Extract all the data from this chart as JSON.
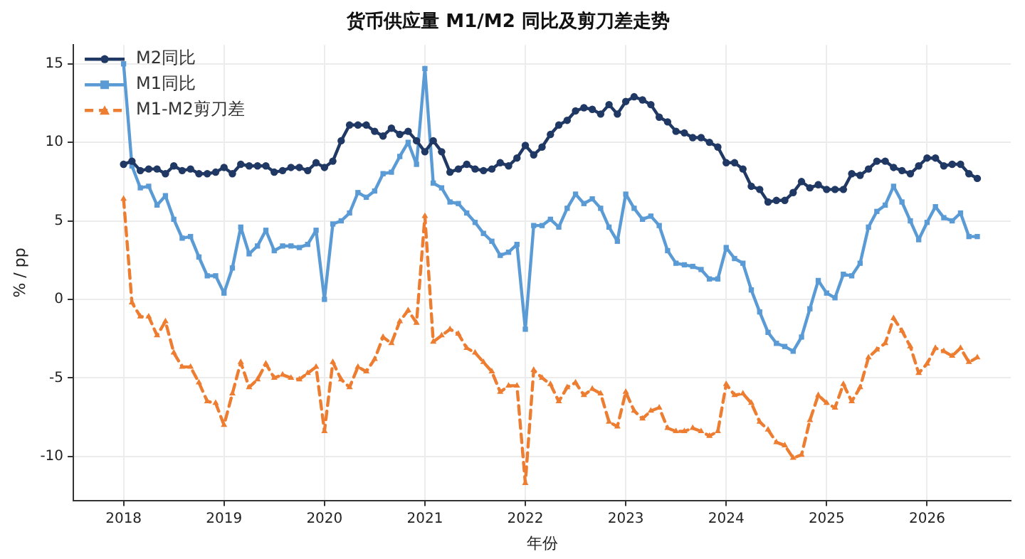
{
  "chart_data": {
    "type": "line",
    "title": "货币供应量 M1/M2 同比及剪刀差走势",
    "xlabel": "年份",
    "ylabel": "% / pp",
    "xlim": [
      "2017-07",
      "2026-11"
    ],
    "xticks": [
      "2018",
      "2019",
      "2020",
      "2021",
      "2022",
      "2023",
      "2024",
      "2025",
      "2026"
    ],
    "ylim": [
      -12.8,
      16.2
    ],
    "yticks": [
      -10,
      -5,
      0,
      5,
      10,
      15
    ],
    "grid": true,
    "legend": "top left",
    "x": [
      "2018-01",
      "2018-02",
      "2018-03",
      "2018-04",
      "2018-05",
      "2018-06",
      "2018-07",
      "2018-08",
      "2018-09",
      "2018-10",
      "2018-11",
      "2018-12",
      "2019-01",
      "2019-02",
      "2019-03",
      "2019-04",
      "2019-05",
      "2019-06",
      "2019-07",
      "2019-08",
      "2019-09",
      "2019-10",
      "2019-11",
      "2019-12",
      "2020-01",
      "2020-02",
      "2020-03",
      "2020-04",
      "2020-05",
      "2020-06",
      "2020-07",
      "2020-08",
      "2020-09",
      "2020-10",
      "2020-11",
      "2020-12",
      "2021-01",
      "2021-02",
      "2021-03",
      "2021-04",
      "2021-05",
      "2021-06",
      "2021-07",
      "2021-08",
      "2021-09",
      "2021-10",
      "2021-11",
      "2021-12",
      "2022-01",
      "2022-02",
      "2022-03",
      "2022-04",
      "2022-05",
      "2022-06",
      "2022-07",
      "2022-08",
      "2022-09",
      "2022-10",
      "2022-11",
      "2022-12",
      "2023-01",
      "2023-02",
      "2023-03",
      "2023-04",
      "2023-05",
      "2023-06",
      "2023-07",
      "2023-08",
      "2023-09",
      "2023-10",
      "2023-11",
      "2023-12",
      "2024-01",
      "2024-02",
      "2024-03",
      "2024-04",
      "2024-05",
      "2024-06",
      "2024-07",
      "2024-08",
      "2024-09",
      "2024-10",
      "2024-11",
      "2024-12",
      "2025-01",
      "2025-02",
      "2025-03",
      "2025-04",
      "2025-05",
      "2025-06",
      "2025-07",
      "2025-08",
      "2025-09",
      "2025-10",
      "2025-11",
      "2025-12",
      "2026-01",
      "2026-02",
      "2026-03",
      "2026-04",
      "2026-05",
      "2026-06",
      "2026-07"
    ],
    "series": [
      {
        "name": "M2同比",
        "color": "#203864",
        "marker": "circle",
        "line_style": "solid",
        "values": [
          8.6,
          8.8,
          8.2,
          8.3,
          8.3,
          8.0,
          8.5,
          8.2,
          8.3,
          8.0,
          8.0,
          8.1,
          8.4,
          8.0,
          8.6,
          8.5,
          8.5,
          8.5,
          8.1,
          8.2,
          8.4,
          8.4,
          8.2,
          8.7,
          8.4,
          8.8,
          10.1,
          11.1,
          11.1,
          11.1,
          10.7,
          10.4,
          10.9,
          10.5,
          10.7,
          10.1,
          9.4,
          10.1,
          9.4,
          8.1,
          8.3,
          8.6,
          8.3,
          8.2,
          8.3,
          8.7,
          8.5,
          9.0,
          9.8,
          9.2,
          9.7,
          10.5,
          11.1,
          11.4,
          12.0,
          12.2,
          12.1,
          11.8,
          12.4,
          11.8,
          12.6,
          12.9,
          12.7,
          12.4,
          11.6,
          11.3,
          10.7,
          10.6,
          10.3,
          10.3,
          10.0,
          9.7,
          8.7,
          8.7,
          8.3,
          7.2,
          7.0,
          6.2,
          6.3,
          6.3,
          6.8,
          7.5,
          7.1,
          7.3,
          7.0,
          7.0,
          7.0,
          8.0,
          7.9,
          8.3,
          8.8,
          8.8,
          8.4,
          8.2,
          8.0,
          8.5,
          9.0,
          9.0,
          8.5,
          8.6,
          8.6,
          8.0,
          7.7
        ]
      },
      {
        "name": "M1同比",
        "color": "#5b9bd5",
        "marker": "square",
        "line_style": "solid",
        "values": [
          15.0,
          8.5,
          7.1,
          7.2,
          6.0,
          6.6,
          5.1,
          3.9,
          4.0,
          2.7,
          1.5,
          1.5,
          0.4,
          2.0,
          4.6,
          2.9,
          3.4,
          4.4,
          3.1,
          3.4,
          3.4,
          3.3,
          3.5,
          4.4,
          0.0,
          4.8,
          5.0,
          5.5,
          6.8,
          6.5,
          6.9,
          8.0,
          8.1,
          9.1,
          10.0,
          8.6,
          14.7,
          7.4,
          7.1,
          6.2,
          6.1,
          5.5,
          4.9,
          4.2,
          3.7,
          2.8,
          3.0,
          3.5,
          -1.9,
          4.7,
          4.7,
          5.1,
          4.6,
          5.8,
          6.7,
          6.1,
          6.4,
          5.8,
          4.6,
          3.7,
          6.7,
          5.8,
          5.1,
          5.3,
          4.7,
          3.1,
          2.3,
          2.2,
          2.1,
          1.9,
          1.3,
          1.3,
          3.3,
          2.6,
          2.3,
          0.6,
          -0.8,
          -2.1,
          -2.8,
          -3.0,
          -3.3,
          -2.4,
          -0.6,
          1.2,
          0.4,
          0.1,
          1.6,
          1.5,
          2.3,
          4.6,
          5.6,
          6.0,
          7.2,
          6.2,
          5.0,
          3.8,
          4.9,
          5.9,
          5.2,
          5.0,
          5.5,
          4.0,
          4.0
        ]
      },
      {
        "name": "M1-M2剪刀差",
        "color": "#ed7d31",
        "marker": "triangle",
        "line_style": "dashed",
        "values": [
          6.4,
          -0.2,
          -1.1,
          -1.1,
          -2.3,
          -1.4,
          -3.4,
          -4.3,
          -4.3,
          -5.3,
          -6.5,
          -6.6,
          -8.0,
          -6.0,
          -4.0,
          -5.6,
          -5.1,
          -4.1,
          -5.0,
          -4.8,
          -5.0,
          -5.1,
          -4.7,
          -4.3,
          -8.4,
          -4.0,
          -5.1,
          -5.6,
          -4.3,
          -4.6,
          -3.8,
          -2.4,
          -2.8,
          -1.4,
          -0.7,
          -1.5,
          5.3,
          -2.7,
          -2.3,
          -1.9,
          -2.2,
          -3.1,
          -3.4,
          -4.0,
          -4.6,
          -5.9,
          -5.5,
          -5.5,
          -11.7,
          -4.5,
          -5.0,
          -5.4,
          -6.5,
          -5.6,
          -5.3,
          -6.1,
          -5.7,
          -6.0,
          -7.8,
          -8.1,
          -5.9,
          -7.1,
          -7.6,
          -7.1,
          -6.9,
          -8.2,
          -8.4,
          -8.4,
          -8.2,
          -8.4,
          -8.7,
          -8.4,
          -5.4,
          -6.1,
          -6.0,
          -6.6,
          -7.8,
          -8.3,
          -9.1,
          -9.3,
          -10.1,
          -9.9,
          -7.7,
          -6.1,
          -6.6,
          -6.9,
          -5.4,
          -6.5,
          -5.6,
          -3.7,
          -3.2,
          -2.8,
          -1.2,
          -2.0,
          -3.0,
          -4.7,
          -4.1,
          -3.1,
          -3.3,
          -3.6,
          -3.1,
          -4.0,
          -3.7
        ]
      }
    ]
  }
}
